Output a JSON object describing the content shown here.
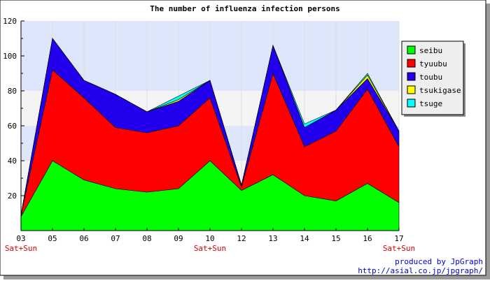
{
  "chart_data": {
    "type": "area",
    "stacked": true,
    "title": "The number of influenza infection persons",
    "categories": [
      "03",
      "05",
      "06",
      "07",
      "08",
      "09",
      "10",
      "12",
      "13",
      "14",
      "15",
      "16",
      "17"
    ],
    "weekend_marks": [
      {
        "category": "03",
        "label": "Sat+Sun"
      },
      {
        "category": "10",
        "label": "Sat+Sun"
      },
      {
        "category": "17",
        "label": "Sat+Sun"
      }
    ],
    "ylim": [
      0,
      120
    ],
    "yticks": [
      20,
      40,
      60,
      80,
      100,
      120
    ],
    "grid": true,
    "legend_position": "right",
    "series": [
      {
        "name": "seibu",
        "color": "#00ff00",
        "values": [
          8,
          40,
          29,
          24,
          22,
          24,
          40,
          23,
          32,
          20,
          17,
          27,
          16
        ]
      },
      {
        "name": "tyuubu",
        "color": "#ff0000",
        "values": [
          1,
          52,
          47,
          35,
          34,
          36,
          36,
          2,
          58,
          28,
          40,
          54,
          32
        ]
      },
      {
        "name": "toubu",
        "color": "#2200ee",
        "values": [
          0,
          18,
          10,
          19,
          12,
          14,
          10,
          1,
          16,
          11,
          12,
          6,
          9
        ]
      },
      {
        "name": "tsukigase",
        "color": "#ffff00",
        "values": [
          0,
          0,
          0,
          0,
          0,
          1,
          0,
          0,
          0,
          0,
          0,
          2,
          0
        ]
      },
      {
        "name": "tsuge",
        "color": "#00ffff",
        "values": [
          0,
          0,
          0,
          0,
          0,
          2,
          0,
          0,
          0,
          2,
          0,
          1,
          0
        ]
      }
    ]
  },
  "footer": {
    "line1": "produced by JpGraph",
    "line2": "http://asial.co.jp/jpgraph/"
  }
}
